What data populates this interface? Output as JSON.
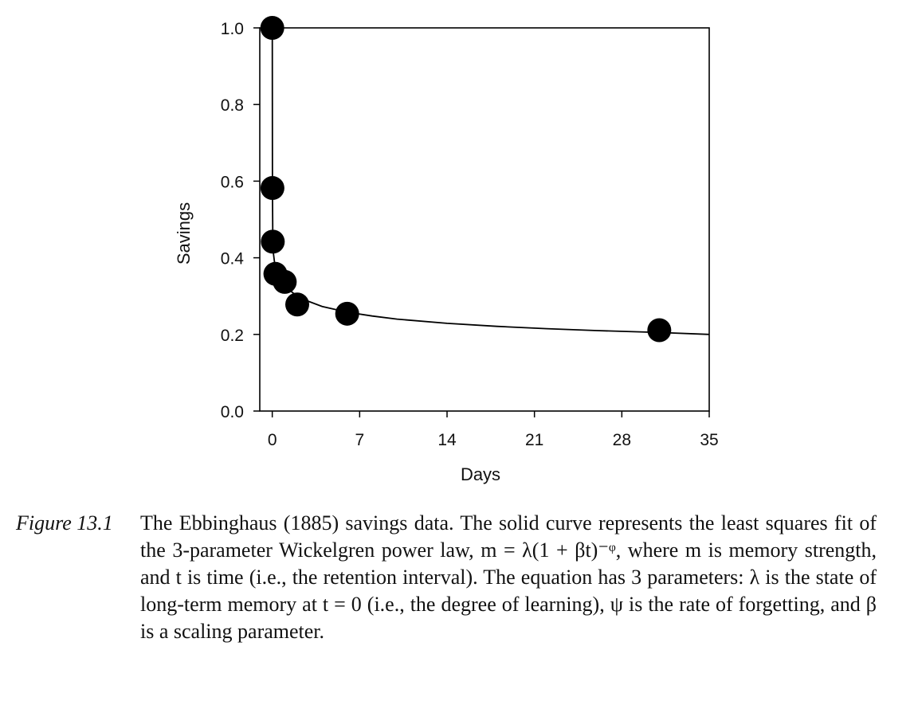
{
  "chart_data": {
    "type": "scatter",
    "xlabel": "Days",
    "ylabel": "Savings",
    "xlim": [
      -1,
      35
    ],
    "ylim": [
      0,
      1.0
    ],
    "xticks": [
      "0",
      "7",
      "14",
      "21",
      "28",
      "35"
    ],
    "yticks": [
      "0.0",
      "0.2",
      "0.4",
      "0.6",
      "0.8",
      "1.0"
    ],
    "grid": false,
    "legend": "none",
    "series": [
      {
        "x": [
          0,
          0.014,
          0.042,
          0.25,
          1,
          2,
          6,
          31
        ],
        "y": [
          1.0,
          0.582,
          0.442,
          0.358,
          0.337,
          0.278,
          0.254,
          0.211
        ],
        "color": "#000000",
        "marker": "filled-circle"
      }
    ],
    "fit_curve": {
      "style": "solid",
      "color": "#000000",
      "x": [
        0,
        0.014,
        0.042,
        0.1,
        0.25,
        0.5,
        1,
        2,
        3,
        4,
        6,
        8,
        10,
        14,
        18,
        22,
        26,
        31,
        35
      ],
      "y": [
        1.0,
        0.58,
        0.46,
        0.41,
        0.37,
        0.345,
        0.325,
        0.3,
        0.285,
        0.273,
        0.258,
        0.248,
        0.24,
        0.229,
        0.221,
        0.215,
        0.21,
        0.205,
        0.2
      ]
    }
  },
  "caption": {
    "label": "Figure 13.1",
    "text": "The Ebbinghaus (1885) savings data. The solid curve represents the least squares fit of the 3-parameter Wickelgren power law, m = λ(1 + βt)⁻ᵠ, where m is memory strength, and t is time (i.e., the retention interval). The equation has 3 parameters: λ is the state of long-term memory at t = 0 (i.e., the degree of learning), ψ is the rate of forgetting, and β is a scaling parameter."
  }
}
